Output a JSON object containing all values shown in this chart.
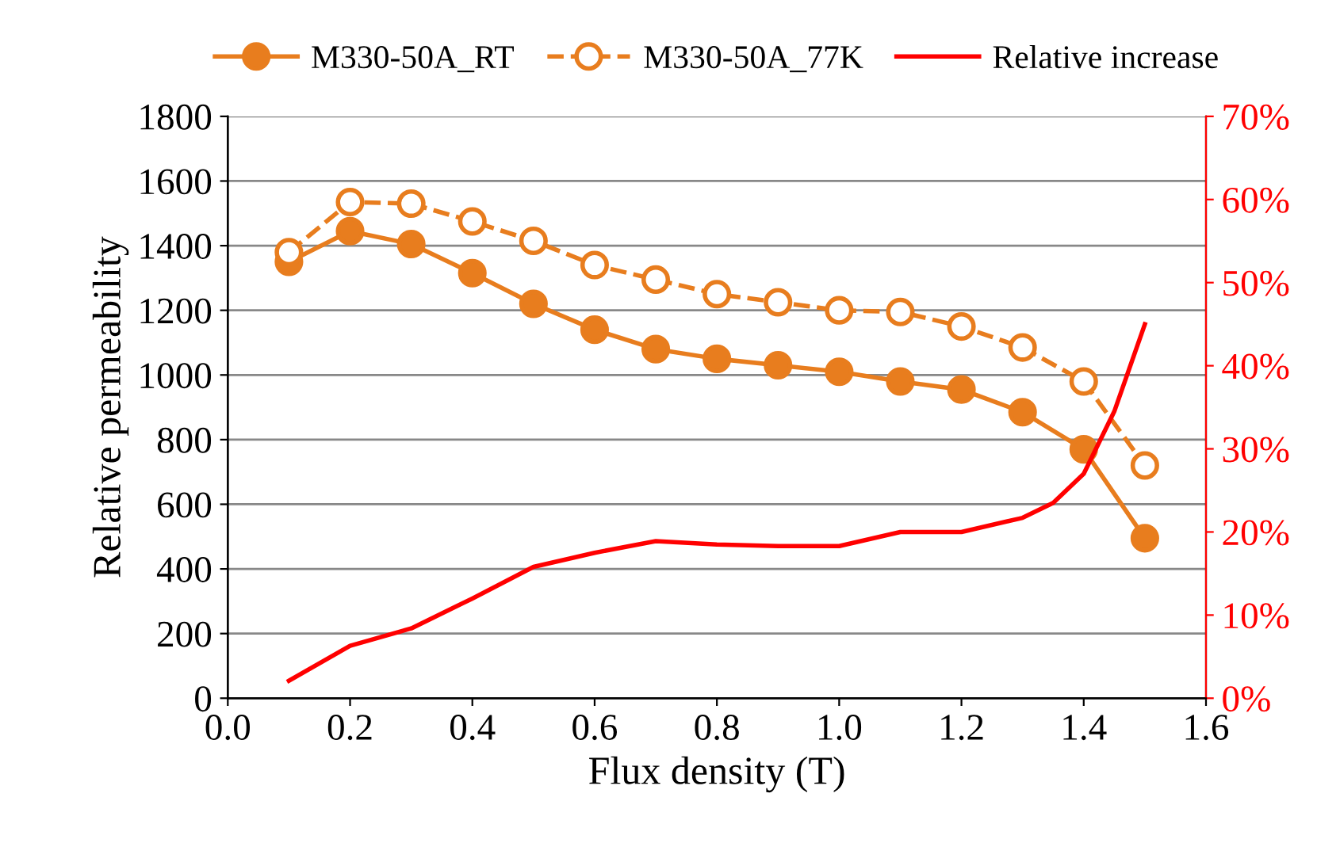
{
  "chart_data": {
    "type": "line",
    "xlabel": "Flux density (T)",
    "ylabel": "Relative permeability",
    "x": [
      0.1,
      0.2,
      0.3,
      0.4,
      0.5,
      0.6,
      0.7,
      0.8,
      0.9,
      1.0,
      1.1,
      1.2,
      1.3,
      1.4,
      1.5
    ],
    "series": [
      {
        "name": "M330-50A_RT",
        "color": "#e87d1e",
        "marker": "circle",
        "line_style": "solid",
        "values": [
          1350,
          1445,
          1405,
          1315,
          1220,
          1140,
          1080,
          1050,
          1030,
          1010,
          980,
          955,
          885,
          770,
          495
        ]
      },
      {
        "name": "M330-50A_77K",
        "color": "#e87d1e",
        "marker": "circle",
        "line_style": "dashed",
        "values": [
          1380,
          1535,
          1530,
          1475,
          1415,
          1340,
          1295,
          1250,
          1225,
          1200,
          1195,
          1150,
          1085,
          980,
          720
        ]
      },
      {
        "name": "Relative increase",
        "color": "#ff0000",
        "marker": "none",
        "line_style": "solid",
        "axis": "y2",
        "x": [
          0.1,
          0.2,
          0.3,
          0.4,
          0.5,
          0.6,
          0.7,
          0.8,
          0.9,
          1.0,
          1.1,
          1.2,
          1.3,
          1.35,
          1.4,
          1.45,
          1.5
        ],
        "values": [
          2.1,
          6.3,
          8.4,
          12,
          15.8,
          17.5,
          18.9,
          18.5,
          18.3,
          18.3,
          20,
          20,
          21.7,
          23.5,
          27,
          34.5,
          45
        ]
      }
    ],
    "xlim": [
      0.0,
      1.6
    ],
    "xticks": [
      {
        "value": 0.0,
        "label": "0.0"
      },
      {
        "value": 0.2,
        "label": "0.2"
      },
      {
        "value": 0.4,
        "label": "0.4"
      },
      {
        "value": 0.6,
        "label": "0.6"
      },
      {
        "value": 0.8,
        "label": "0.8"
      },
      {
        "value": 1.0,
        "label": "1.0"
      },
      {
        "value": 1.2,
        "label": "1.2"
      },
      {
        "value": 1.4,
        "label": "1.4"
      },
      {
        "value": 1.6,
        "label": "1.6"
      }
    ],
    "ylim": [
      0,
      1800
    ],
    "yticks": [
      0,
      200,
      400,
      600,
      800,
      1000,
      1200,
      1400,
      1600,
      1800
    ],
    "y2lim": [
      0,
      70
    ],
    "y2ticks": [
      {
        "value": 0,
        "label": "0%"
      },
      {
        "value": 10,
        "label": "10%"
      },
      {
        "value": 20,
        "label": "20%"
      },
      {
        "value": 30,
        "label": "30%"
      },
      {
        "value": 40,
        "label": "40%"
      },
      {
        "value": 50,
        "label": "50%"
      },
      {
        "value": 60,
        "label": "60%"
      },
      {
        "value": 70,
        "label": "70%"
      }
    ],
    "grid": "y",
    "legend": "top"
  }
}
